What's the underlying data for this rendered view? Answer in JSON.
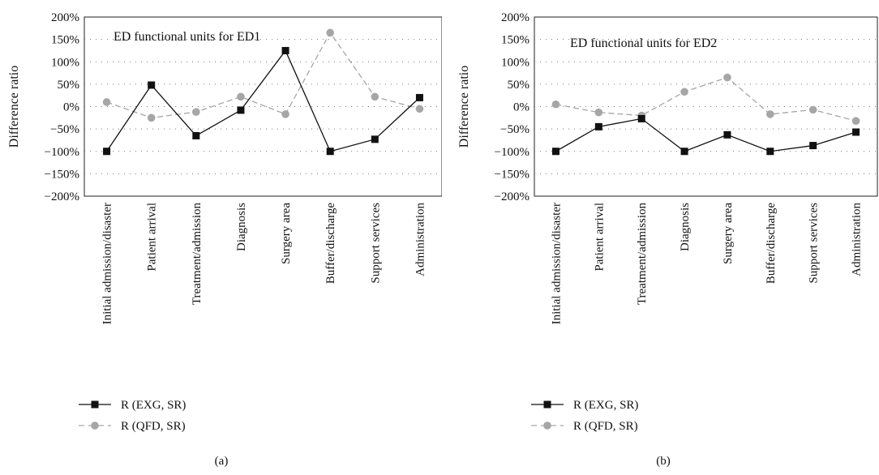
{
  "chart_data": [
    {
      "type": "line",
      "panel_label": "(a)",
      "annotation": "ED functional units for ED1",
      "ylabel": "Difference ratio",
      "xlabel": "",
      "categories": [
        "Initial admission/disaster",
        "Patient arrival",
        "Treatment/admission",
        "Diagnosis",
        "Surgery area",
        "Buffer/discharge",
        "Support services",
        "Administration"
      ],
      "series": [
        {
          "name": "R (EXG, SR)",
          "values": [
            -100,
            48,
            -65,
            -8,
            125,
            -100,
            -73,
            20
          ],
          "color": "#111111",
          "marker": "square",
          "dash": "solid"
        },
        {
          "name": "R (QFD, SR)",
          "values": [
            10,
            -25,
            -12,
            22,
            -17,
            165,
            22,
            -5
          ],
          "color": "#a6a6a6",
          "marker": "circle",
          "dash": "dashed"
        }
      ],
      "yticks": [
        "200%",
        "150%",
        "100%",
        "50%",
        "0%",
        "−50%",
        "−100%",
        "−150%",
        "−200%"
      ],
      "ylim": [
        -200,
        200
      ],
      "grid": "dotted horizontal"
    },
    {
      "type": "line",
      "panel_label": "(b)",
      "annotation": "ED functional units for ED2",
      "ylabel": "Difference ratio",
      "xlabel": "",
      "categories": [
        "Initial admission/disaster",
        "Patient arrival",
        "Treatment/admission",
        "Diagnosis",
        "Surgery area",
        "Buffer/discharge",
        "Support services",
        "Administration"
      ],
      "series": [
        {
          "name": "R (EXG, SR)",
          "values": [
            -100,
            -45,
            -27,
            -100,
            -63,
            -100,
            -87,
            -57
          ],
          "color": "#111111",
          "marker": "square",
          "dash": "solid"
        },
        {
          "name": "R (QFD, SR)",
          "values": [
            5,
            -13,
            -20,
            33,
            65,
            -17,
            -7,
            -32
          ],
          "color": "#a6a6a6",
          "marker": "circle",
          "dash": "dashed"
        }
      ],
      "yticks": [
        "200%",
        "150%",
        "100%",
        "50%",
        "0%",
        "−50%",
        "−100%",
        "−150%",
        "−200%"
      ],
      "ylim": [
        -200,
        200
      ],
      "grid": "dotted horizontal"
    }
  ]
}
